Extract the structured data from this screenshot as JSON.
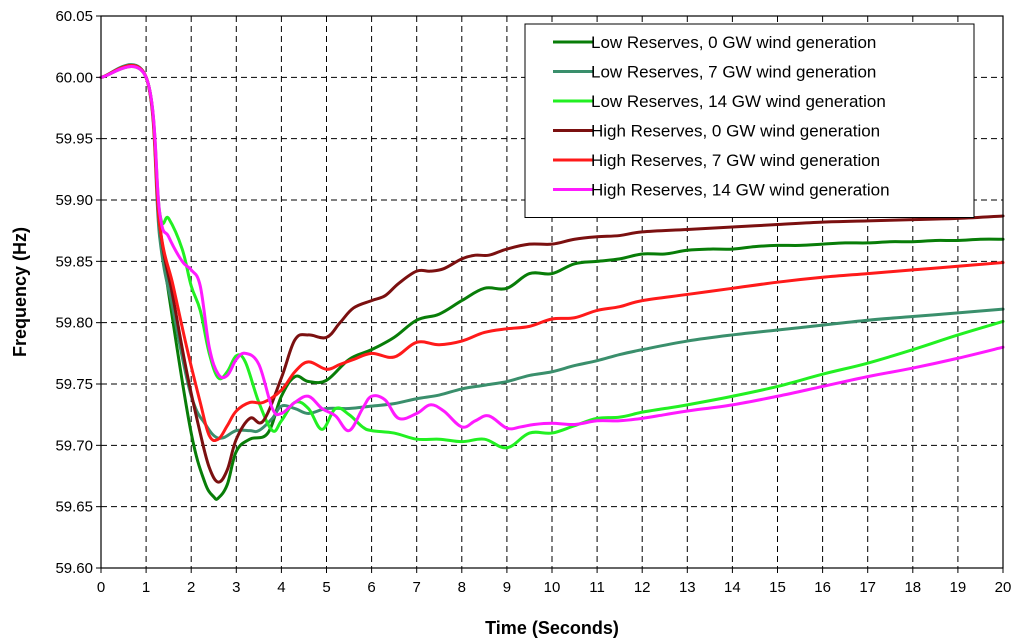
{
  "chart_data": {
    "type": "line",
    "title": "",
    "xlabel": "Time (Seconds)",
    "ylabel": "Frequency (Hz)",
    "xlim": [
      0,
      20
    ],
    "ylim": [
      59.6,
      60.05
    ],
    "xticks": [
      "0",
      "1",
      "2",
      "3",
      "4",
      "5",
      "6",
      "7",
      "8",
      "9",
      "10",
      "11",
      "12",
      "13",
      "14",
      "15",
      "16",
      "17",
      "18",
      "19",
      "20"
    ],
    "yticks": [
      "60.05",
      "60.00",
      "59.95",
      "59.90",
      "59.85",
      "59.80",
      "59.75",
      "59.70",
      "59.65",
      "59.60"
    ],
    "grid": true,
    "legend_position": "top-right",
    "series": [
      {
        "name": "Low Reserves, 0 GW wind generation",
        "color": "#087D08",
        "x": [
          0,
          1,
          1.3,
          1.6,
          2,
          2.3,
          2.5,
          2.6,
          2.8,
          3,
          3.3,
          3.7,
          4,
          4.3,
          4.6,
          5,
          5.5,
          6,
          6.5,
          7,
          7.5,
          8,
          8.5,
          9,
          9.5,
          10,
          10.5,
          11,
          11.5,
          12,
          12.5,
          13,
          13.5,
          14,
          14.5,
          15,
          15.5,
          16,
          16.5,
          17,
          17.5,
          18,
          18.5,
          19,
          19.5,
          20
        ],
        "y": [
          60.0,
          60.0,
          59.88,
          59.8,
          59.71,
          59.67,
          59.658,
          59.657,
          59.668,
          59.695,
          59.705,
          59.71,
          59.74,
          59.756,
          59.752,
          59.753,
          59.77,
          59.778,
          59.788,
          59.802,
          59.807,
          59.818,
          59.828,
          59.828,
          59.84,
          59.84,
          59.848,
          59.85,
          59.852,
          59.856,
          59.856,
          59.859,
          59.86,
          59.86,
          59.862,
          59.863,
          59.863,
          59.864,
          59.865,
          59.865,
          59.866,
          59.866,
          59.867,
          59.867,
          59.868,
          59.868
        ]
      },
      {
        "name": "Low Reserves, 7 GW wind generation",
        "color": "#3A8F6C",
        "x": [
          0,
          1,
          1.3,
          1.6,
          1.9,
          2.1,
          2.3,
          2.5,
          2.7,
          3,
          3.3,
          3.5,
          3.8,
          4,
          4.3,
          4.6,
          5,
          5.5,
          6,
          6.5,
          7,
          7.5,
          8,
          8.5,
          9,
          9.5,
          10,
          10.5,
          11,
          11.5,
          12,
          13,
          14,
          15,
          16,
          17,
          18,
          19,
          20
        ],
        "y": [
          60.0,
          60.0,
          59.87,
          59.81,
          59.755,
          59.73,
          59.718,
          59.708,
          59.706,
          59.712,
          59.712,
          59.712,
          59.722,
          59.732,
          59.73,
          59.726,
          59.73,
          59.73,
          59.732,
          59.734,
          59.738,
          59.741,
          59.746,
          59.749,
          59.752,
          59.757,
          59.76,
          59.765,
          59.769,
          59.774,
          59.778,
          59.785,
          59.79,
          59.794,
          59.798,
          59.802,
          59.805,
          59.808,
          59.811
        ]
      },
      {
        "name": "Low Reserves, 14 GW wind generation",
        "color": "#22F022",
        "x": [
          0,
          1,
          1.3,
          1.5,
          1.8,
          2,
          2.2,
          2.4,
          2.6,
          2.8,
          3,
          3.2,
          3.5,
          3.8,
          4,
          4.3,
          4.6,
          4.9,
          5.2,
          5.5,
          5.8,
          6,
          6.5,
          7,
          7.5,
          8,
          8.5,
          9,
          9.5,
          10,
          10.5,
          11,
          11.5,
          12,
          12.5,
          13,
          14,
          15,
          16,
          17,
          18,
          19,
          20
        ],
        "y": [
          60.0,
          60.0,
          59.89,
          59.885,
          59.86,
          59.83,
          59.81,
          59.775,
          59.755,
          59.76,
          59.773,
          59.768,
          59.735,
          59.712,
          59.72,
          59.735,
          59.73,
          59.713,
          59.73,
          59.725,
          59.715,
          59.712,
          59.71,
          59.705,
          59.705,
          59.703,
          59.705,
          59.698,
          59.71,
          59.71,
          59.716,
          59.722,
          59.723,
          59.727,
          59.73,
          59.733,
          59.74,
          59.748,
          59.758,
          59.767,
          59.778,
          59.79,
          59.801
        ]
      },
      {
        "name": "High Reserves, 0 GW wind generation",
        "color": "#7B1010",
        "x": [
          0,
          1,
          1.3,
          1.6,
          1.9,
          2.2,
          2.4,
          2.6,
          2.8,
          3,
          3.3,
          3.6,
          4,
          4.3,
          4.6,
          5,
          5.3,
          5.6,
          6,
          6.3,
          6.6,
          7,
          7.3,
          7.6,
          8,
          8.3,
          8.6,
          9,
          9.5,
          10,
          10.5,
          11,
          11.5,
          12,
          13,
          14,
          15,
          16,
          17,
          18,
          19,
          20
        ],
        "y": [
          60.0,
          60.0,
          59.88,
          59.82,
          59.76,
          59.71,
          59.682,
          59.67,
          59.68,
          59.705,
          59.722,
          59.72,
          59.755,
          59.786,
          59.79,
          59.788,
          59.8,
          59.812,
          59.818,
          59.822,
          59.832,
          59.842,
          59.842,
          59.844,
          59.852,
          59.855,
          59.855,
          59.86,
          59.864,
          59.864,
          59.868,
          59.87,
          59.871,
          59.874,
          59.876,
          59.878,
          59.88,
          59.882,
          59.883,
          59.884,
          59.885,
          59.887
        ]
      },
      {
        "name": "High Reserves, 7 GW wind generation",
        "color": "#FF1A1A",
        "x": [
          0,
          1,
          1.3,
          1.6,
          1.9,
          2.2,
          2.4,
          2.6,
          2.8,
          3,
          3.3,
          3.6,
          4,
          4.3,
          4.6,
          5,
          5.3,
          5.6,
          6,
          6.5,
          7,
          7.5,
          8,
          8.5,
          9,
          9.5,
          10,
          10.5,
          11,
          11.5,
          12,
          13,
          14,
          15,
          16,
          17,
          18,
          19,
          20
        ],
        "y": [
          60.0,
          60.0,
          59.88,
          59.83,
          59.78,
          59.735,
          59.708,
          59.705,
          59.716,
          59.728,
          59.735,
          59.735,
          59.745,
          59.76,
          59.768,
          59.762,
          59.766,
          59.77,
          59.775,
          59.772,
          59.784,
          59.782,
          59.785,
          59.792,
          59.795,
          59.797,
          59.803,
          59.804,
          59.81,
          59.813,
          59.818,
          59.823,
          59.828,
          59.833,
          59.837,
          59.84,
          59.843,
          59.846,
          59.849
        ]
      },
      {
        "name": "High Reserves, 14 GW wind generation",
        "color": "#FF1AFF",
        "x": [
          0,
          1,
          1.3,
          1.5,
          1.8,
          2,
          2.2,
          2.4,
          2.6,
          2.8,
          3,
          3.2,
          3.5,
          3.8,
          4,
          4.3,
          4.6,
          4.9,
          5.2,
          5.5,
          5.8,
          6,
          6.3,
          6.6,
          7,
          7.3,
          7.6,
          8,
          8.3,
          8.6,
          9,
          9.3,
          9.6,
          10,
          10.5,
          11,
          11.5,
          12,
          12.5,
          13,
          14,
          15,
          16,
          17,
          18,
          19,
          20
        ],
        "y": [
          60.0,
          60.0,
          59.89,
          59.87,
          59.85,
          59.843,
          59.83,
          59.78,
          59.758,
          59.757,
          59.77,
          59.775,
          59.766,
          59.73,
          59.726,
          59.735,
          59.74,
          59.73,
          59.724,
          59.712,
          59.73,
          59.74,
          59.737,
          59.722,
          59.726,
          59.733,
          59.728,
          59.715,
          59.72,
          59.724,
          59.714,
          59.715,
          59.717,
          59.718,
          59.717,
          59.72,
          59.72,
          59.722,
          59.725,
          59.728,
          59.733,
          59.74,
          59.748,
          59.756,
          59.763,
          59.771,
          59.78
        ]
      }
    ]
  }
}
